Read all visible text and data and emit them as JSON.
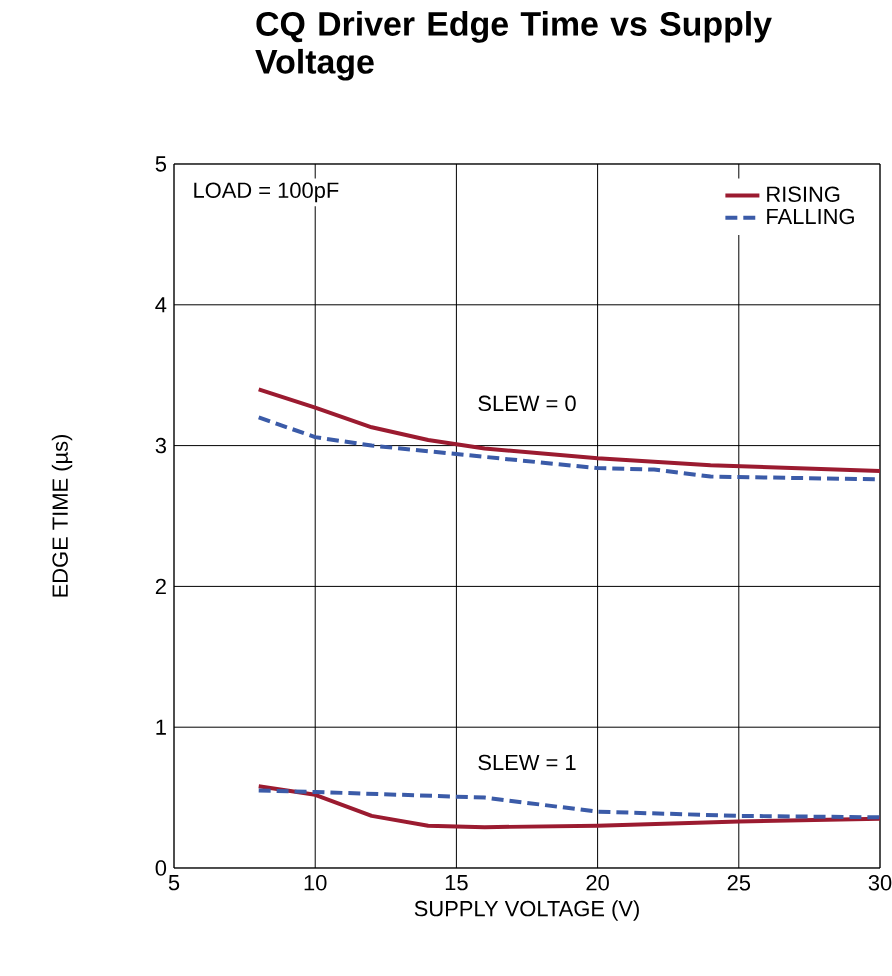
{
  "chart_data": {
    "type": "line",
    "title": "CQ Driver Edge Time vs Supply Voltage",
    "xlabel": "SUPPLY VOLTAGE (V)",
    "ylabel": "EDGE TIME (µs)",
    "xlim": [
      5,
      30
    ],
    "ylim": [
      0,
      5
    ],
    "xticks": [
      5,
      10,
      15,
      20,
      25,
      30
    ],
    "yticks": [
      0,
      1,
      2,
      3,
      4,
      5
    ],
    "grid": true,
    "legend": "top right",
    "series": [
      {
        "name": "RISING",
        "color": "#9b1b30",
        "line_style": "solid",
        "x": [
          8,
          10,
          12,
          14,
          16,
          20,
          24,
          30
        ],
        "values": [
          3.4,
          3.27,
          3.13,
          3.04,
          2.98,
          2.91,
          2.86,
          2.82
        ]
      },
      {
        "name": "FALLING",
        "color": "#3b5ba8",
        "line_style": "dashed",
        "x": [
          8,
          10,
          12,
          16,
          20,
          22,
          24,
          30
        ],
        "values": [
          3.2,
          3.06,
          3.0,
          2.92,
          2.84,
          2.83,
          2.78,
          2.76
        ]
      },
      {
        "color": "#9b1b30",
        "line_style": "solid",
        "x": [
          8,
          10,
          12,
          14,
          16,
          20,
          25,
          30
        ],
        "values": [
          0.58,
          0.52,
          0.37,
          0.3,
          0.29,
          0.3,
          0.33,
          0.35
        ]
      },
      {
        "color": "#3b5ba8",
        "line_style": "dashed",
        "x": [
          8,
          10,
          16,
          18,
          20,
          25,
          30
        ],
        "values": [
          0.55,
          0.54,
          0.5,
          0.45,
          0.4,
          0.37,
          0.36
        ]
      }
    ],
    "annotations": [
      "LOAD = 100pF",
      "SLEW = 0",
      "SLEW = 1"
    ]
  }
}
